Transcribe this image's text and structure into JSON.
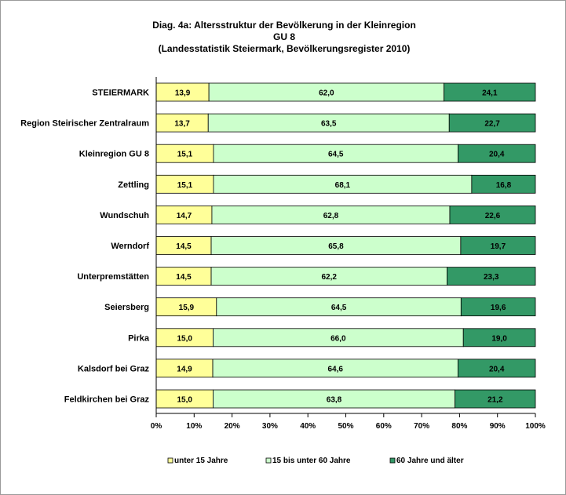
{
  "chart_data": {
    "type": "bar",
    "orientation": "horizontal",
    "stacked": "percent",
    "title": [
      "Diag. 4a: Altersstruktur  der Bevölkerung  in der Kleinregion",
      "GU 8",
      "(Landesstatistik  Steiermark,  Bevölkerungsregister  2010)"
    ],
    "categories": [
      "STEIERMARK",
      "Region Steirischer Zentralraum",
      "Kleinregion GU 8",
      "Zettling",
      "Wundschuh",
      "Werndorf",
      "Unterpremstätten",
      "Seiersberg",
      "Pirka",
      "Kalsdorf bei Graz",
      "Feldkirchen bei Graz"
    ],
    "series": [
      {
        "name": "unter 15 Jahre",
        "color": "#ffff99",
        "values": [
          13.9,
          13.7,
          15.1,
          15.1,
          14.7,
          14.5,
          14.5,
          15.9,
          15.0,
          14.9,
          15.0
        ],
        "labels": [
          "13,9",
          "13,7",
          "15,1",
          "15,1",
          "14,7",
          "14,5",
          "14,5",
          "15,9",
          "15,0",
          "14,9",
          "15,0"
        ]
      },
      {
        "name": "15 bis unter 60 Jahre",
        "color": "#ccffcc",
        "values": [
          62.0,
          63.5,
          64.5,
          68.1,
          62.8,
          65.8,
          62.2,
          64.5,
          66.0,
          64.6,
          63.8
        ],
        "labels": [
          "62,0",
          "63,5",
          "64,5",
          "68,1",
          "62,8",
          "65,8",
          "62,2",
          "64,5",
          "66,0",
          "64,6",
          "63,8"
        ]
      },
      {
        "name": "60 Jahre und älter",
        "color": "#339966",
        "values": [
          24.1,
          22.7,
          20.4,
          16.8,
          22.6,
          19.7,
          23.3,
          19.6,
          19.0,
          20.4,
          21.2
        ],
        "labels": [
          "24,1",
          "22,7",
          "20,4",
          "16,8",
          "22,6",
          "19,7",
          "23,3",
          "19,6",
          "19,0",
          "20,4",
          "21,2"
        ]
      }
    ],
    "xlim": [
      0,
      100
    ],
    "xticks": [
      "0%",
      "10%",
      "20%",
      "30%",
      "40%",
      "50%",
      "60%",
      "70%",
      "80%",
      "90%",
      "100%"
    ],
    "grid": false,
    "legend": "bottom"
  }
}
